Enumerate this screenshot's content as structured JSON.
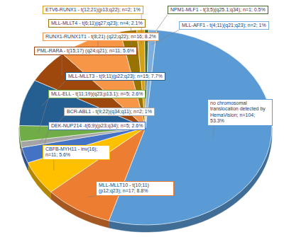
{
  "chart_data": {
    "type": "pie",
    "categories": [
      "no chromosomal translocation detected by HemaVision; n=104; 53.3%",
      "MLL-MLLT10 - t(10;11)(p12;q23); n=17; 8.8%",
      "CBFB-MYH11 - inv(16); n=11; 5.6%",
      "DEK-NUP214 -t(6;9)(p23;q34); n=5; 2.6%",
      "BCR-ABL1 - t(9;22)(q34;q11); n=2; 1%",
      "MLL-ELL - t(11;19)(q23;p13.1); n=5; 2.6%",
      "MLL-MLLT3 - t(9;11)(p22;q23); n=15; 7.7%",
      "PML-RARA - t(15;17) (q24;q21); n=11; 5.6%",
      "RUNX1-RUNX1T1 - t(8;21) (q22;q22); n=16; 8.2%",
      "MLL-MLLT4 - t(6;11)(q27;q23); n=4; 2.1%",
      "ETV6-RUNX1 - t(12;21)(p13;q22); n=2; 1%",
      "NPM1-MLF1 - t(3;5)(q25.1;q34); n=1; 0.5%",
      "MLL-AFF1 - t(4;11)(q21;q23); n=2; 1%"
    ],
    "values": [
      53.3,
      8.8,
      5.6,
      2.6,
      1,
      2.6,
      7.7,
      5.6,
      8.2,
      2.1,
      1,
      0.5,
      1
    ],
    "colors": [
      "#5b9bd5",
      "#ed7d31",
      "#ffc000",
      "#4472c4",
      "#a5a5a5",
      "#70ad47",
      "#255e91",
      "#9e480e",
      "#f79646",
      "#997300",
      "#d4a017",
      "#43682b",
      "#7cafdd"
    ]
  }
}
